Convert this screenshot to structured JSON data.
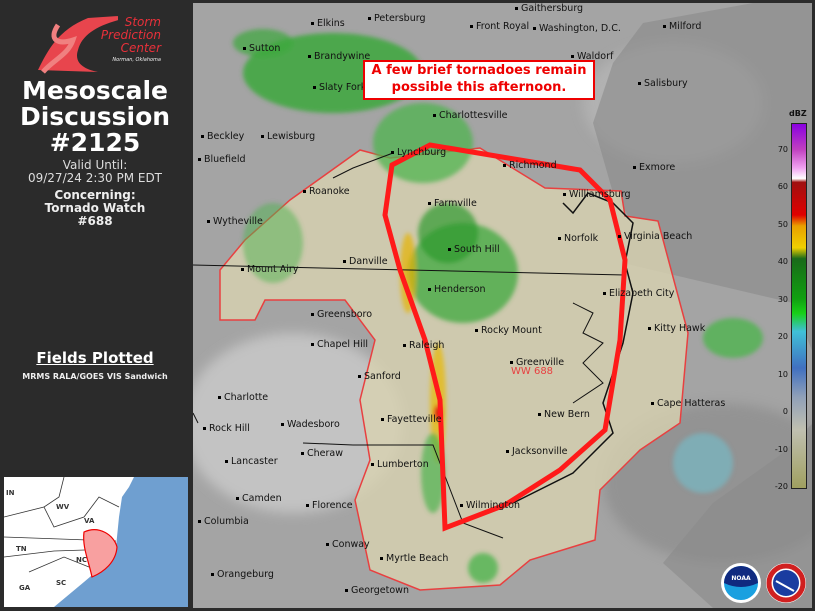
{
  "sidebar": {
    "logo": {
      "line1": "Storm",
      "line2": "Prediction",
      "line3": "Center",
      "line4": "Norman, Oklahoma"
    },
    "title1": "Mesoscale",
    "title2": "Discussion",
    "number": "#2125",
    "valid_label": "Valid Until:",
    "valid_time": "09/27/24 2:30 PM EDT",
    "concerning_label": "Concerning:",
    "concerning1": "Tornado Watch",
    "concerning2": "#688",
    "fields_title": "Fields Plotted",
    "fields_value": "MRMS RALA/GOES VIS Sandwich",
    "inset_states": [
      "IN",
      "WV",
      "VA",
      "TN",
      "NC",
      "SC",
      "GA"
    ]
  },
  "map": {
    "annotation": "A few brief tornadoes remain possible this afternoon.",
    "watch_label": "WW 688",
    "cities": [
      "Gaithersburg",
      "Elkins",
      "Petersburg",
      "Front Royal",
      "Washington, D.C.",
      "Milford",
      "Sutton",
      "Brandywine",
      "Waldorf",
      "Salisbury",
      "Slaty Fork",
      "Charlottesville",
      "Beckley",
      "Lewisburg",
      "Lynchburg",
      "Richmond",
      "Exmore",
      "Bluefield",
      "Roanoke",
      "Williamsburg",
      "Farmville",
      "Wytheville",
      "Norfolk",
      "Virginia Beach",
      "South Hill",
      "Danville",
      "Mount Airy",
      "Henderson",
      "Elizabeth City",
      "Greensboro",
      "Kitty Hawk",
      "Rocky Mount",
      "Chapel Hill",
      "Raleigh",
      "Greenville",
      "Sanford",
      "Charlotte",
      "Cape Hatteras",
      "Fayetteville",
      "New Bern",
      "Rock Hill",
      "Wadesboro",
      "Cheraw",
      "Jacksonville",
      "Lancaster",
      "Lumberton",
      "Camden",
      "Florence",
      "Wilmington",
      "Columbia",
      "Conway",
      "Myrtle Beach",
      "Orangeburg",
      "Georgetown"
    ],
    "legend": {
      "unit": "dBZ",
      "ticks": [
        "70",
        "60",
        "50",
        "40",
        "30",
        "20",
        "10",
        "0",
        "-10",
        "-20"
      ]
    },
    "logos": [
      "NOAA",
      "National Weather Service"
    ],
    "colors": {
      "md_outline": "#ff1a1a",
      "watch_outline": "#e84040",
      "watch_fill": "#d8d2b0"
    }
  }
}
